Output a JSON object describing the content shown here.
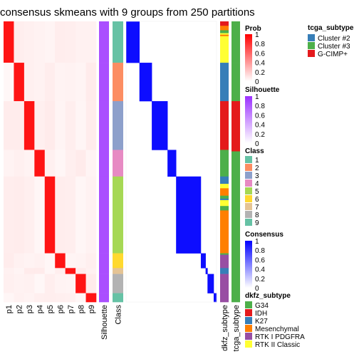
{
  "chart_data": {
    "type": "heatmap",
    "title": "consensus skmeans with 9 groups from 250 partitions",
    "prob_columns": [
      "p1",
      "p2",
      "p3",
      "p4",
      "p5",
      "p6",
      "p7",
      "p8",
      "p9"
    ],
    "annotation_columns": [
      "Silhouette",
      "Class"
    ],
    "right_annotation_columns": [
      "dkfz_subtype",
      "tcga_subtype"
    ],
    "groups": [
      {
        "class": 1,
        "start": 0,
        "end": 28,
        "prob_col": 0
      },
      {
        "class": 2,
        "start": 28,
        "end": 54,
        "prob_col": 1
      },
      {
        "class": 3,
        "start": 54,
        "end": 87,
        "prob_col": 2
      },
      {
        "class": 4,
        "start": 87,
        "end": 105,
        "prob_col": 3
      },
      {
        "class": 5,
        "start": 105,
        "end": 157,
        "prob_col": 4
      },
      {
        "class": 6,
        "start": 157,
        "end": 167,
        "prob_col": 5
      },
      {
        "class": 7,
        "start": 167,
        "end": 171,
        "prob_col": 6
      },
      {
        "class": 8,
        "start": 171,
        "end": 184,
        "prob_col": 7
      },
      {
        "class": 9,
        "start": 184,
        "end": 190,
        "prob_col": 8
      }
    ],
    "n_samples": 190,
    "dkfz_segments": [
      {
        "subtype": "IDH",
        "start": 0,
        "end": 3
      },
      {
        "subtype": "Mesenchymal",
        "start": 3,
        "end": 6
      },
      {
        "subtype": "G34",
        "start": 6,
        "end": 8
      },
      {
        "subtype": "RTK II Classic",
        "start": 8,
        "end": 9
      },
      {
        "subtype": "Mesenchymal",
        "start": 9,
        "end": 10
      },
      {
        "subtype": "RTK II Classic",
        "start": 10,
        "end": 28
      },
      {
        "subtype": "K27",
        "start": 28,
        "end": 54
      },
      {
        "subtype": "IDH",
        "start": 54,
        "end": 87
      },
      {
        "subtype": "G34",
        "start": 87,
        "end": 105
      },
      {
        "subtype": "K27",
        "start": 105,
        "end": 110
      },
      {
        "subtype": "RTK II Classic",
        "start": 110,
        "end": 113
      },
      {
        "subtype": "Mesenchymal",
        "start": 113,
        "end": 118
      },
      {
        "subtype": "G34",
        "start": 118,
        "end": 120
      },
      {
        "subtype": "K27",
        "start": 120,
        "end": 121
      },
      {
        "subtype": "RTK II Classic",
        "start": 121,
        "end": 125
      },
      {
        "subtype": "G34",
        "start": 125,
        "end": 128
      },
      {
        "subtype": "Mesenchymal",
        "start": 128,
        "end": 157
      },
      {
        "subtype": "G34",
        "start": 157,
        "end": 158
      },
      {
        "subtype": "RTK I PDGFRA",
        "start": 158,
        "end": 167
      },
      {
        "subtype": "K27",
        "start": 167,
        "end": 171
      },
      {
        "subtype": "RTK I PDGFRA",
        "start": 171,
        "end": 190
      }
    ],
    "tcga_segments": [
      {
        "subtype": "Cluster #3",
        "start": 0,
        "end": 28
      },
      {
        "subtype": "Cluster #3",
        "start": 28,
        "end": 54
      },
      {
        "subtype": "G-CIMP+",
        "start": 54,
        "end": 87
      },
      {
        "subtype": "G-CIMP+",
        "start": 87,
        "end": 88
      },
      {
        "subtype": "Cluster #3",
        "start": 88,
        "end": 190
      }
    ],
    "colors": {
      "prob_high": "#ff0000",
      "prob_low": "#ffffff",
      "silhouette_high": "#9b30ff",
      "silhouette_low": "#ffffff",
      "consensus_high": "#0000ff",
      "consensus_low": "#ffffff",
      "class": {
        "1": "#66c2a5",
        "2": "#fc8d62",
        "3": "#8da0cb",
        "4": "#e78ac3",
        "5": "#a6d854",
        "6": "#ffd92f",
        "7": "#e5c494",
        "8": "#b3b3b3",
        "9": "#66c2a5"
      },
      "tcga": {
        "Cluster #2": "#377eb8",
        "Cluster #3": "#4daf4a",
        "G-CIMP+": "#e41a1c"
      },
      "dkfz": {
        "G34": "#4daf4a",
        "IDH": "#e41a1c",
        "K27": "#377eb8",
        "Mesenchymal": "#ff7f00",
        "RTK I PDGFRA": "#984ea3",
        "RTK II Classic": "#ffff33"
      }
    }
  },
  "legends": {
    "tcga": {
      "title": "tcga_subtype",
      "items": [
        "Cluster #2",
        "Cluster #3",
        "G-CIMP+"
      ]
    },
    "prob": {
      "title": "Prob",
      "ticks": [
        "1",
        "0.8",
        "0.6",
        "0.4",
        "0.2",
        "0"
      ]
    },
    "silhouette": {
      "title": "Silhouette",
      "ticks": [
        "1",
        "0.8",
        "0.6",
        "0.4",
        "0.2",
        "0"
      ]
    },
    "class": {
      "title": "Class",
      "items": [
        "1",
        "2",
        "3",
        "4",
        "5",
        "6",
        "7",
        "8",
        "9"
      ]
    },
    "consensus": {
      "title": "Consensus",
      "ticks": [
        "1",
        "0.8",
        "0.6",
        "0.4",
        "0.2",
        "0"
      ]
    },
    "dkfz": {
      "title": "dkfz_subtype",
      "items": [
        "G34",
        "IDH",
        "K27",
        "Mesenchymal",
        "RTK I PDGFRA",
        "RTK II Classic"
      ]
    }
  }
}
